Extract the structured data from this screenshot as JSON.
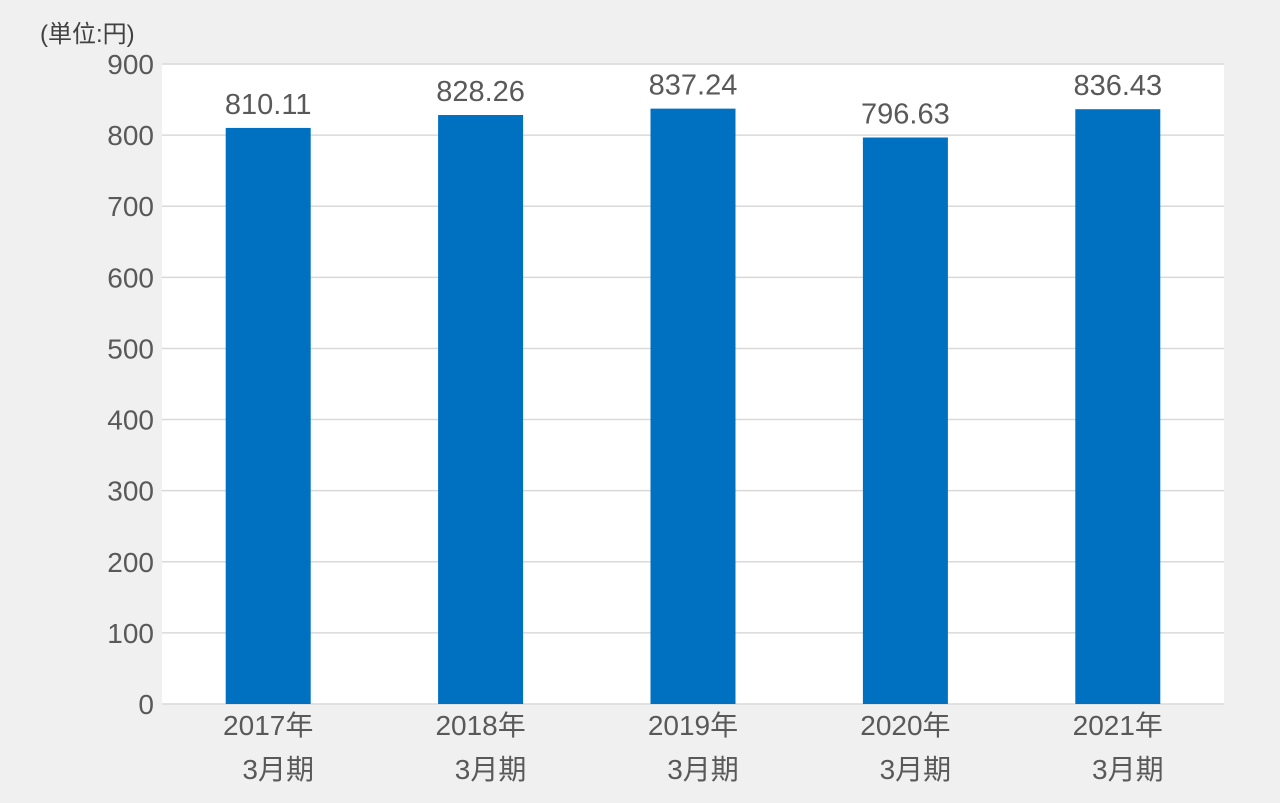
{
  "chart_data": {
    "type": "bar",
    "unit_label": "(単位:円)",
    "categories": [
      [
        "2017年",
        "3月期"
      ],
      [
        "2018年",
        "3月期"
      ],
      [
        "2019年",
        "3月期"
      ],
      [
        "2020年",
        "3月期"
      ],
      [
        "2021年",
        "3月期"
      ]
    ],
    "values": [
      810.11,
      828.26,
      837.24,
      796.63,
      836.43
    ],
    "value_labels": [
      "810.11",
      "828.26",
      "837.24",
      "796.63",
      "836.43"
    ],
    "ylim": [
      0,
      900
    ],
    "yticks": [
      0,
      100,
      200,
      300,
      400,
      500,
      600,
      700,
      800,
      900
    ],
    "grid": true,
    "legend": "none",
    "colors": {
      "bar": "#0070c0",
      "plot_background": "#ffffff",
      "page_background": "#f0f0f0",
      "grid": "#d9d9d9",
      "text": "#595959"
    }
  }
}
